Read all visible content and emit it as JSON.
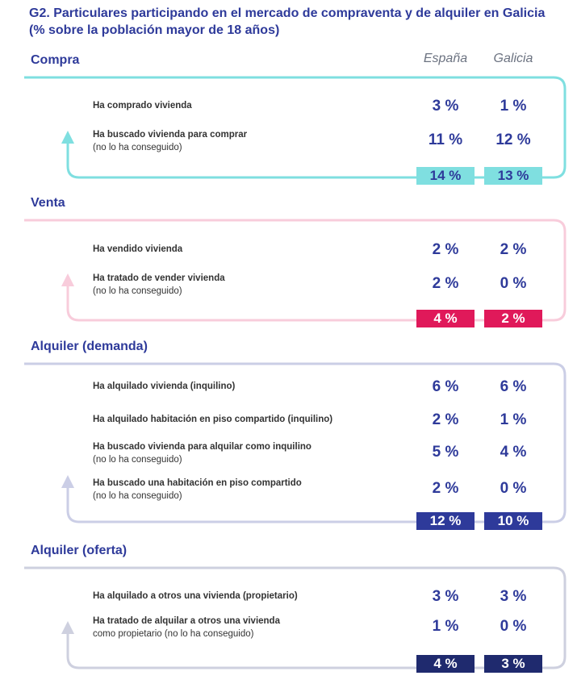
{
  "title": {
    "line1": "G2. Particulares participando en el mercado de compraventa y de alquiler en Galicia",
    "line2": "(% sobre la población mayor de 18 años)"
  },
  "columns": {
    "spain": "España",
    "galicia": "Galicia"
  },
  "chart_data": {
    "type": "table",
    "title": "G2. Particulares participando en el mercado de compraventa y de alquiler en Galicia (% sobre la población mayor de 18 años)",
    "columns": [
      "España",
      "Galicia"
    ],
    "sections": [
      {
        "name": "Compra",
        "color": "#7fdfe0",
        "total_text_color": "#2e3a9a",
        "rows": [
          {
            "label": "Ha comprado vivienda",
            "sublabel": "",
            "spain": "3 %",
            "galicia": "1 %"
          },
          {
            "label": "Ha buscado vivienda para comprar",
            "sublabel": "(no lo ha conseguido)",
            "spain": "11 %",
            "galicia": "12 %"
          }
        ],
        "totals": {
          "spain": "14 %",
          "galicia": "13 %"
        }
      },
      {
        "name": "Venta",
        "color": "#e0195a",
        "total_text_color": "#ffffff",
        "rows": [
          {
            "label": "Ha vendido vivienda",
            "sublabel": "",
            "spain": "2 %",
            "galicia": "2 %"
          },
          {
            "label": "Ha tratado de vender vivienda",
            "sublabel": "(no lo ha conseguido)",
            "spain": "2 %",
            "galicia": "0 %"
          }
        ],
        "totals": {
          "spain": "4 %",
          "galicia": "2 %"
        }
      },
      {
        "name": "Alquiler (demanda)",
        "color": "#2e3a9a",
        "total_text_color": "#ffffff",
        "rows": [
          {
            "label": "Ha alquilado vivienda (inquilino)",
            "sublabel": "",
            "spain": "6 %",
            "galicia": "6 %"
          },
          {
            "label": "Ha alquilado habitación en piso compartido (inquilino)",
            "sublabel": "",
            "spain": "2 %",
            "galicia": "1 %"
          },
          {
            "label": "Ha buscado vivienda para alquilar como inquilino",
            "sublabel": "(no lo ha conseguido)",
            "spain": "5 %",
            "galicia": "4 %"
          },
          {
            "label": "Ha buscado una habitación en piso compartido",
            "sublabel": "(no lo ha conseguido)",
            "spain": "2 %",
            "galicia": "0 %"
          }
        ],
        "totals": {
          "spain": "12 %",
          "galicia": "10 %"
        }
      },
      {
        "name": "Alquiler (oferta)",
        "color": "#1f2a6e",
        "total_text_color": "#ffffff",
        "rows": [
          {
            "label": "Ha alquilado a otros una vivienda (propietario)",
            "sublabel": "",
            "spain": "3 %",
            "galicia": "3 %"
          },
          {
            "label": "Ha tratado de alquilar a otros una vivienda",
            "sublabel": "como propietario (no lo ha conseguido)",
            "spain": "1 %",
            "galicia": "0 %"
          }
        ],
        "totals": {
          "spain": "4 %",
          "galicia": "3 %"
        }
      }
    ]
  }
}
